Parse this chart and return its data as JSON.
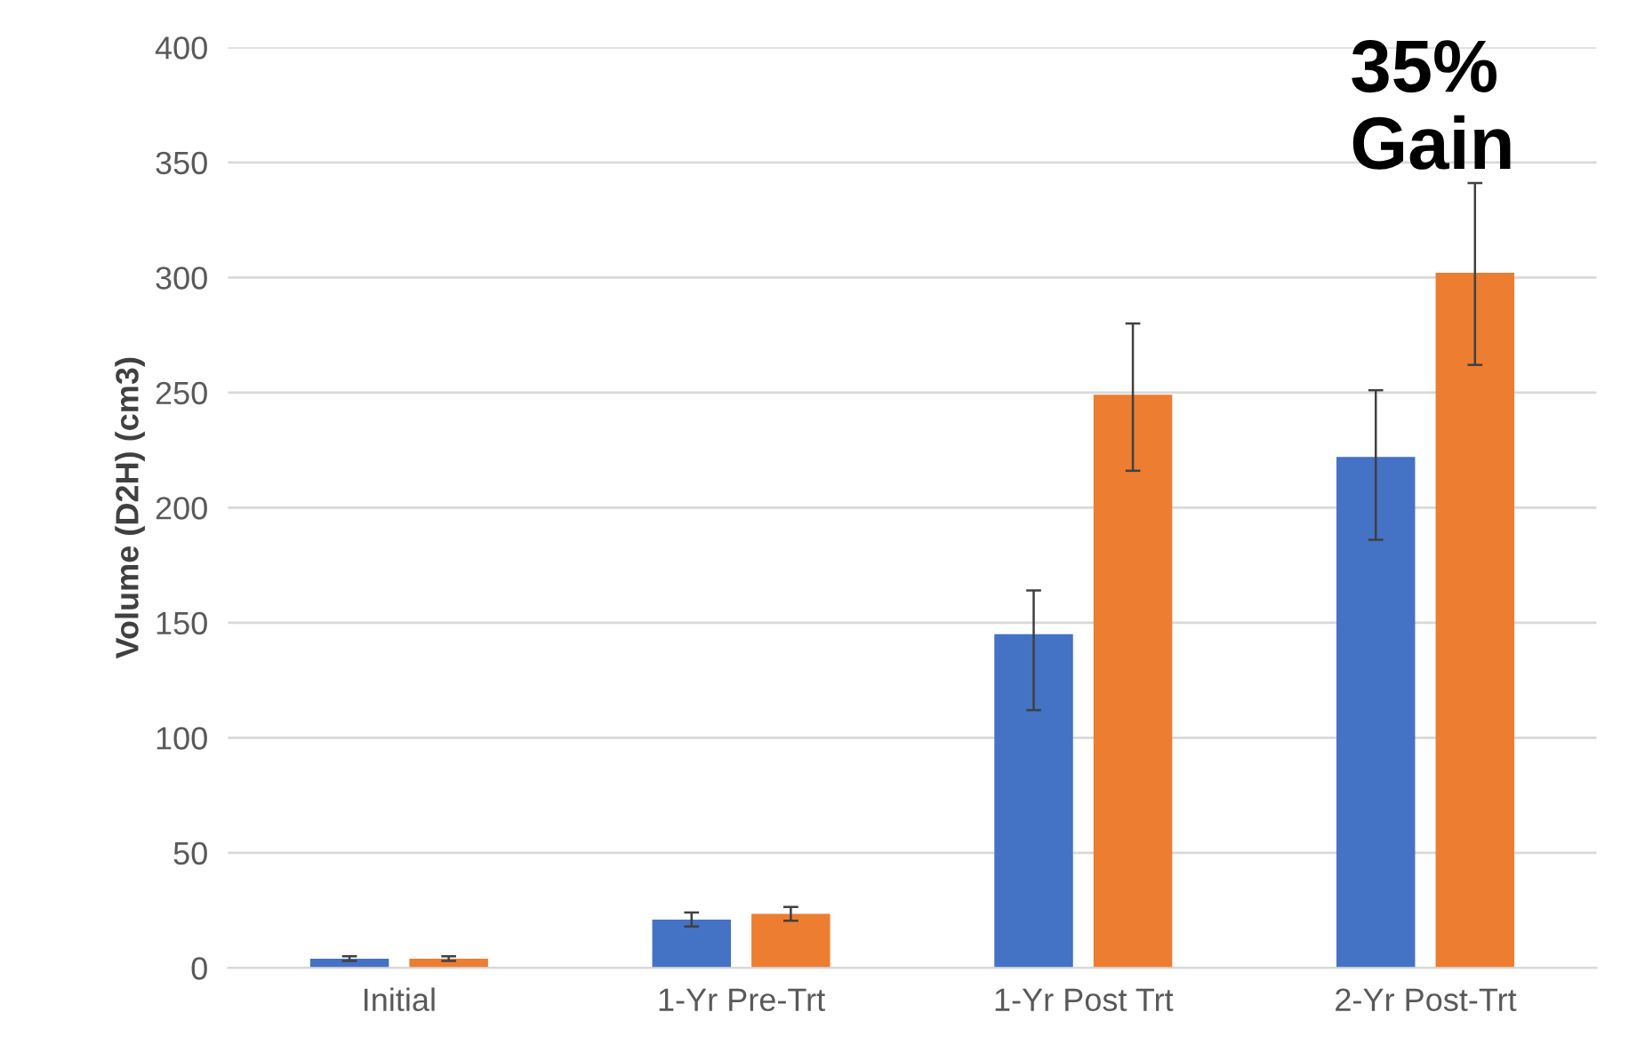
{
  "chart_data": {
    "type": "bar",
    "ylabel": "Volume (D2H) (cm3)",
    "categories": [
      "Initial",
      "1-Yr Pre-Trt",
      "1-Yr Post Trt",
      "2-Yr Post-Trt"
    ],
    "series": [
      {
        "color": "#4472c4",
        "values": [
          4,
          21,
          145,
          222
        ],
        "errors": [
          1,
          3,
          [
            112,
            164
          ],
          [
            186,
            251
          ]
        ]
      },
      {
        "color": "#ed7d31",
        "values": [
          4,
          23.5,
          249,
          302
        ],
        "errors": [
          1,
          3,
          [
            216,
            280
          ],
          [
            262,
            341
          ]
        ]
      }
    ],
    "ylim": [
      0,
      400
    ],
    "yticks": [
      0,
      50,
      100,
      150,
      200,
      250,
      300,
      350,
      400
    ],
    "grid": "y",
    "legend": false,
    "annotations": [
      "35%\nGain"
    ]
  }
}
